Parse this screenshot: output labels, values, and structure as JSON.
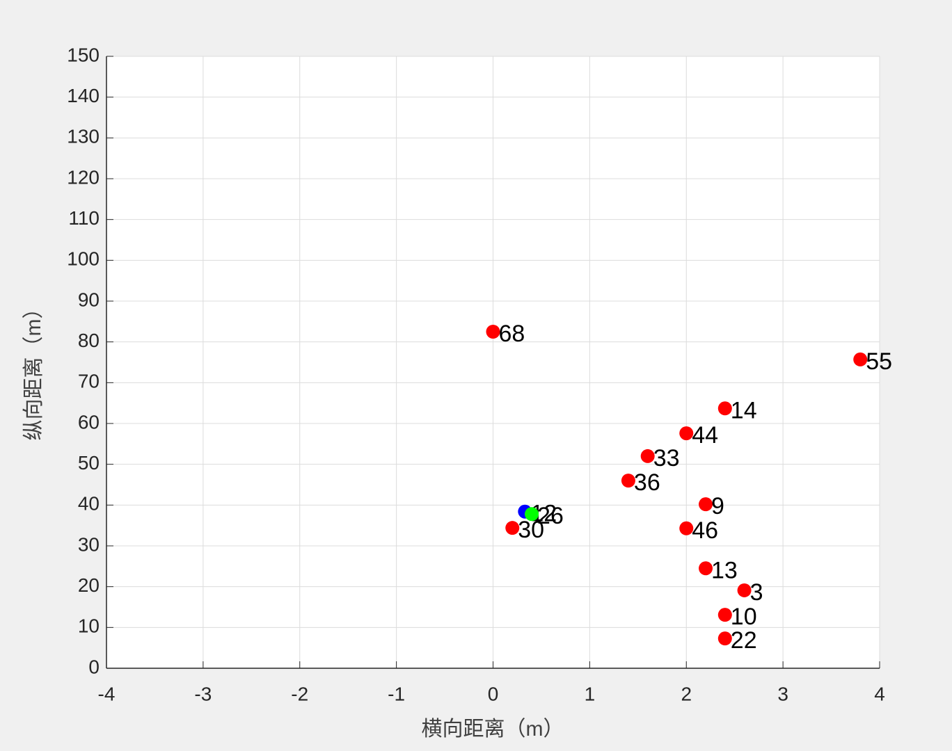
{
  "chart_data": {
    "type": "scatter",
    "xlabel": "横向距离（m）",
    "ylabel": "纵向距离（m）",
    "xlim": [
      -4,
      4
    ],
    "xticks": [
      -4,
      -3,
      -2,
      -1,
      0,
      1,
      2,
      3,
      4
    ],
    "ylim": [
      0,
      150
    ],
    "yticks": [
      0,
      10,
      20,
      30,
      40,
      50,
      60,
      70,
      80,
      90,
      100,
      110,
      120,
      130,
      140,
      150
    ],
    "grid": true,
    "series": [
      {
        "color": "#ff0000",
        "x": [
          0,
          3.8,
          2.4,
          2.0,
          1.6,
          1.4,
          2.2,
          2.0,
          2.2,
          2.6,
          2.4,
          2.4,
          0.2
        ],
        "values": [
          82.5,
          75.7,
          63.7,
          57.6,
          52.0,
          46.0,
          40.2,
          34.3,
          24.5,
          19.1,
          13.1,
          7.3,
          34.4
        ],
        "labels": [
          "68",
          "55",
          "14",
          "44",
          "33",
          "36",
          "9",
          "46",
          "13",
          "3",
          "10",
          "22",
          "30"
        ]
      },
      {
        "color": "#0000ff",
        "x": [
          0.33
        ],
        "values": [
          38.4
        ],
        "labels": [
          "12"
        ]
      },
      {
        "color": "#00ff00",
        "x": [
          0.4
        ],
        "values": [
          37.8
        ],
        "labels": [
          "26"
        ]
      }
    ]
  }
}
